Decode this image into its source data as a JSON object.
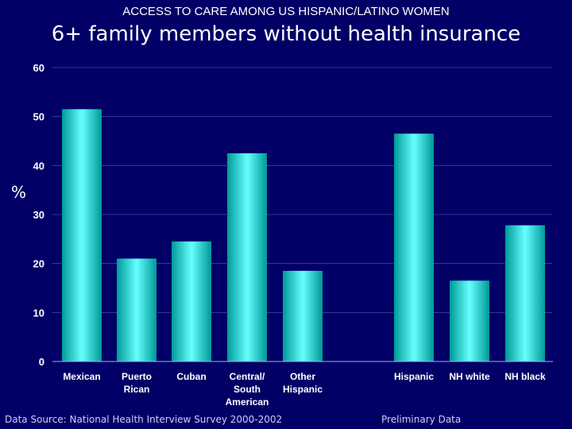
{
  "supertitle": "ACCESS TO CARE AMONG US HISPANIC/LATINO WOMEN",
  "footer": {
    "source": "Data Source:  National Health Interview Survey 2000-2002",
    "note": "Preliminary Data"
  },
  "colors": {
    "background": "#000066",
    "bar_edge": "#009999",
    "bar_center": "#66ffff",
    "gridline": "#8888cc",
    "text": "#ffffff"
  },
  "chart_data": {
    "type": "bar",
    "title": "6+ family members without health insurance",
    "xlabel": "",
    "ylabel": "%",
    "ylim": [
      0,
      60
    ],
    "yticks": [
      0,
      10,
      20,
      30,
      40,
      50,
      60
    ],
    "grid": true,
    "categories": [
      [
        "Mexican"
      ],
      [
        "Puerto",
        "Rican"
      ],
      [
        "Cuban"
      ],
      [
        "Central/",
        "South",
        "American"
      ],
      [
        "Other",
        "Hispanic"
      ],
      [
        "Hispanic"
      ],
      [
        "NH white"
      ],
      [
        "NH black"
      ]
    ],
    "values": [
      51.5,
      21,
      24.5,
      42.5,
      18.5,
      46.5,
      16.5,
      27.8
    ]
  }
}
